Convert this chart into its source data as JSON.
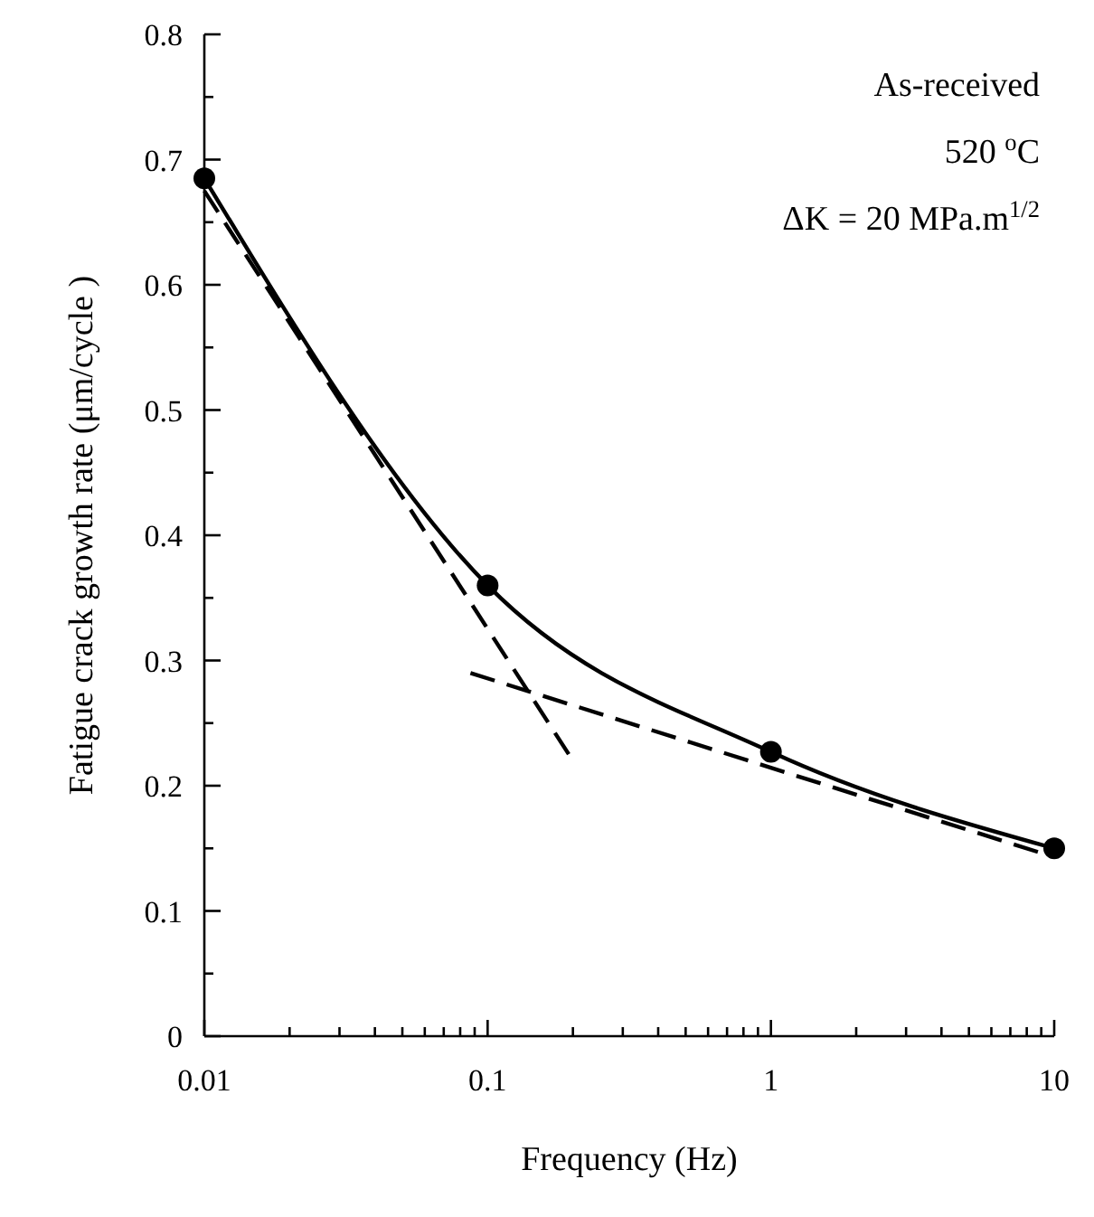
{
  "chart_data": {
    "type": "line",
    "xlabel": "Frequency (Hz)",
    "ylabel": "Fatigue crack growth rate (μm/cycle )",
    "log": "x",
    "xlim": [
      0.01,
      10
    ],
    "ylim": [
      0,
      0.8
    ],
    "xticks": [
      0.01,
      {
        "value": 0.02,
        "label": null
      },
      {
        "value": 0.03,
        "label": null
      },
      {
        "value": 0.04,
        "label": null
      },
      {
        "value": 0.05,
        "label": null
      },
      {
        "value": 0.06,
        "label": null
      },
      {
        "value": 0.07,
        "label": null
      },
      {
        "value": 0.08,
        "label": null
      },
      {
        "value": 0.09,
        "label": null
      },
      0.1,
      {
        "value": 0.2,
        "label": null
      },
      {
        "value": 0.3,
        "label": null
      },
      {
        "value": 0.4,
        "label": null
      },
      {
        "value": 0.5,
        "label": null
      },
      {
        "value": 0.6,
        "label": null
      },
      {
        "value": 0.7,
        "label": null
      },
      {
        "value": 0.8,
        "label": null
      },
      {
        "value": 0.9,
        "label": null
      },
      1,
      {
        "value": 2,
        "label": null
      },
      {
        "value": 3,
        "label": null
      },
      {
        "value": 4,
        "label": null
      },
      {
        "value": 5,
        "label": null
      },
      {
        "value": 6,
        "label": null
      },
      {
        "value": 7,
        "label": null
      },
      {
        "value": 8,
        "label": null
      },
      {
        "value": 9,
        "label": null
      },
      10
    ],
    "yticks": [
      {
        "value": 0,
        "label": "0"
      },
      {
        "value": 0.05,
        "label": null
      },
      0.1,
      {
        "value": 0.15,
        "label": null
      },
      0.2,
      {
        "value": 0.25,
        "label": null
      },
      0.3,
      {
        "value": 0.35,
        "label": null
      },
      0.4,
      {
        "value": 0.45,
        "label": null
      },
      0.5,
      {
        "value": 0.55,
        "label": null
      },
      0.6,
      {
        "value": 0.65,
        "label": null
      },
      0.7,
      {
        "value": 0.75,
        "label": null
      },
      0.8
    ],
    "series": [
      {
        "color": "#000000",
        "x": [
          0.01,
          0.1,
          1,
          10
        ],
        "values": [
          0.685,
          0.36,
          0.227,
          0.15
        ],
        "marker": "circle",
        "line_style": "solid"
      },
      {
        "color": "#000000",
        "x": [
          0.01,
          0.2
        ],
        "values": [
          0.675,
          0.22
        ],
        "marker": "none",
        "line_style": "dashed"
      },
      {
        "color": "#000000",
        "x": [
          0.087,
          10
        ],
        "values": [
          0.29,
          0.143
        ],
        "marker": "none",
        "line_style": "dashed"
      }
    ],
    "annotations": [
      "As-received",
      "520 $^{o}$C",
      "ΔK = 20 MPa.m$^{1/2}$"
    ]
  }
}
